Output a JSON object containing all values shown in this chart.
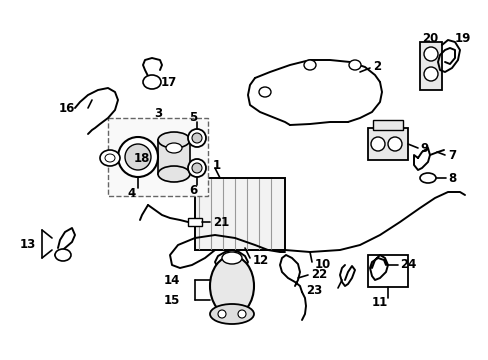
{
  "bg_color": "#ffffff",
  "fig_width": 4.89,
  "fig_height": 3.6,
  "dpi": 100,
  "label_fontsize": 8.5,
  "label_color": "#000000",
  "oc": "#000000",
  "lw_main": 1.4,
  "lw_thin": 0.9
}
